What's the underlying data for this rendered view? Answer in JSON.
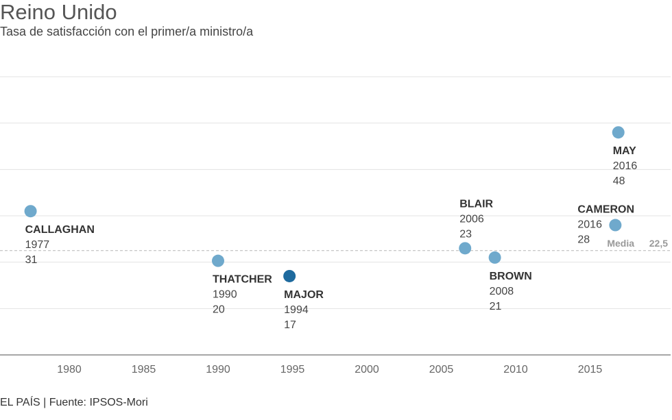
{
  "header": {
    "title": "Reino Unido",
    "subtitle": "Tasa de satisfacción con el primer/a ministro/a"
  },
  "footer": {
    "source": "EL PAÍS | Fuente: IPSOS-Mori"
  },
  "chart_data": {
    "type": "scatter",
    "title": "Reino Unido",
    "subtitle": "Tasa de satisfacción con el primer/a ministro/a",
    "xlim": [
      1975,
      2020
    ],
    "ylim": [
      0,
      60
    ],
    "x_ticks": [
      "1980",
      "1985",
      "1990",
      "1995",
      "2000",
      "2005",
      "2010",
      "2015"
    ],
    "grid": true,
    "average": {
      "label": "Media",
      "value_label": "22,5",
      "value": 22.5
    },
    "points": [
      {
        "name": "CALLAGHAN",
        "year": "1977",
        "value": "31",
        "x": 1977.4,
        "y": 31,
        "color": "#6fa9cc"
      },
      {
        "name": "THATCHER",
        "year": "1990",
        "value": "20",
        "x": 1990.0,
        "y": 20.3,
        "color": "#6fa9cc"
      },
      {
        "name": "MAJOR",
        "year": "1994",
        "value": "17",
        "x": 1994.8,
        "y": 17,
        "color": "#1e6a9e"
      },
      {
        "name": "BLAIR",
        "year": "2006",
        "value": "23",
        "x": 2006.6,
        "y": 23,
        "color": "#6fa9cc"
      },
      {
        "name": "BROWN",
        "year": "2008",
        "value": "21",
        "x": 2008.6,
        "y": 21,
        "color": "#6fa9cc"
      },
      {
        "name": "CAMERON",
        "year": "2016",
        "value": "28",
        "x": 2016.7,
        "y": 28,
        "color": "#6fa9cc"
      },
      {
        "name": "MAY",
        "year": "2016",
        "value": "48",
        "x": 2016.9,
        "y": 48,
        "color": "#6fa9cc"
      }
    ]
  }
}
